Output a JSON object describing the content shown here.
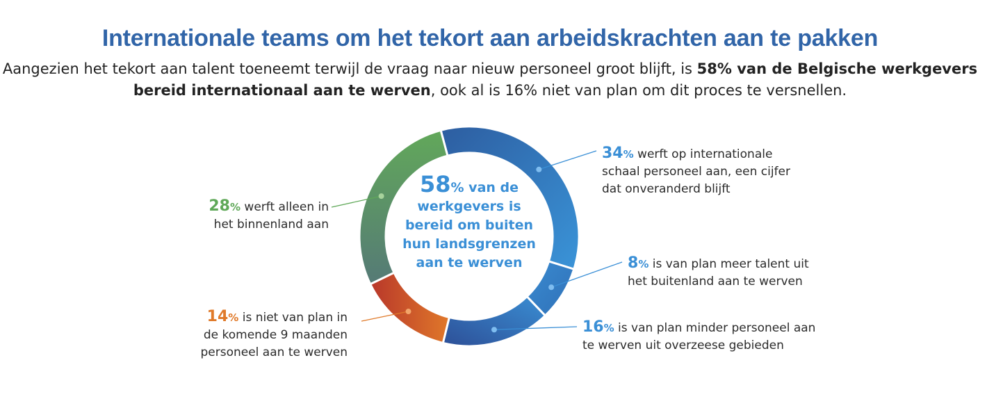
{
  "title": "Internationale teams om het tekort aan arbeidskrachten aan te pakken",
  "subtitle": {
    "part1": "Aangezien het tekort aan talent toeneemt terwijl de vraag naar nieuw personeel groot blijft, is ",
    "bold": "58% van de Belgische werkgevers bereid internationaal aan te werven",
    "part2": ", ook al is 16% niet van plan om dit proces te versnellen."
  },
  "center": {
    "number": "58",
    "pct": "%",
    "line1_rest": " van de",
    "lines": [
      "werkgevers is",
      "bereid om buiten",
      "hun landsgrenzen",
      "aan te werven"
    ]
  },
  "chart_data": {
    "type": "pie",
    "style": "donut",
    "slices": [
      {
        "number": "34",
        "value": 34,
        "text": [
          "werft op internationale",
          "schaal personeel aan, een cijfer",
          "dat onveranderd blijft"
        ],
        "color": "#3a8fd6",
        "side": "right"
      },
      {
        "number": "8",
        "value": 8,
        "text": [
          "is van plan meer talent uit",
          "het buitenland aan te werven"
        ],
        "color": "#3a8fd6",
        "side": "right"
      },
      {
        "number": "16",
        "value": 16,
        "text": [
          "is van plan minder personeel aan",
          "te werven uit overzeese gebieden"
        ],
        "color": "#3a8fd6",
        "side": "right"
      },
      {
        "number": "14",
        "value": 14,
        "text": [
          "is niet van plan in",
          "de komende 9 maanden",
          "personeel aan te werven"
        ],
        "color": "#e07a2a",
        "side": "left"
      },
      {
        "number": "28",
        "value": 28,
        "text": [
          "werft alleen in",
          "het binnenland aan"
        ],
        "color": "#5fa858",
        "side": "left"
      }
    ]
  }
}
